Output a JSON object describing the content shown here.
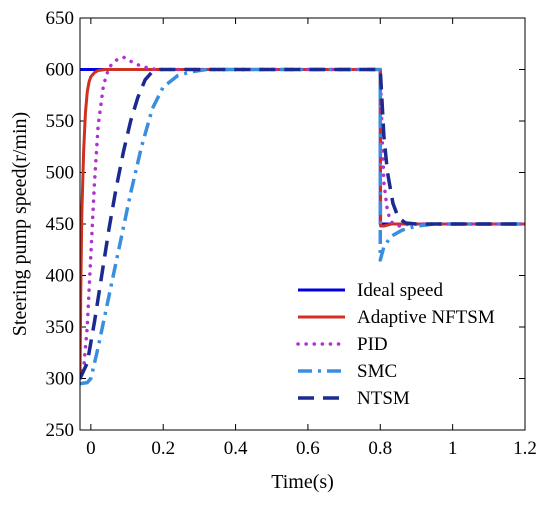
{
  "chart_data": {
    "type": "line",
    "title": "",
    "xlabel": "Time(s)",
    "ylabel": "Steering pump speed(r/min)",
    "xlim": [
      -0.03,
      1.2
    ],
    "ylim": [
      250,
      650
    ],
    "xticks": [
      0,
      0.2,
      0.4,
      0.6,
      0.8,
      1,
      1.2
    ],
    "xtick_labels": [
      "0",
      "0.2",
      "0.4",
      "0.6",
      "0.8",
      "1",
      "1.2"
    ],
    "yticks": [
      250,
      300,
      350,
      400,
      450,
      500,
      550,
      600,
      650
    ],
    "ytick_labels": [
      "250",
      "300",
      "350",
      "400",
      "450",
      "500",
      "550",
      "600",
      "650"
    ],
    "grid": false,
    "legend_position": "bottom-right",
    "series": [
      {
        "name": "Ideal speed",
        "color": "#0000e0",
        "style": "solid",
        "points": [
          [
            -0.03,
            600
          ],
          [
            0.8,
            600
          ],
          [
            0.8,
            450
          ],
          [
            1.2,
            450
          ]
        ]
      },
      {
        "name": "Adaptive NFTSM",
        "color": "#d03020",
        "style": "solid",
        "points": [
          [
            -0.03,
            300
          ],
          [
            -0.028,
            380
          ],
          [
            -0.025,
            460
          ],
          [
            -0.02,
            520
          ],
          [
            -0.015,
            558
          ],
          [
            -0.01,
            578
          ],
          [
            -0.005,
            588
          ],
          [
            0.0,
            593
          ],
          [
            0.01,
            597
          ],
          [
            0.02,
            599
          ],
          [
            0.04,
            600
          ],
          [
            0.8,
            600
          ],
          [
            0.801,
            448
          ],
          [
            0.81,
            448
          ],
          [
            0.83,
            450
          ],
          [
            0.85,
            450
          ],
          [
            1.2,
            450
          ]
        ]
      },
      {
        "name": "PID",
        "color": "#b030d0",
        "style": "dotted",
        "points": [
          [
            -0.03,
            300
          ],
          [
            -0.02,
            310
          ],
          [
            -0.01,
            350
          ],
          [
            0.0,
            420
          ],
          [
            0.01,
            490
          ],
          [
            0.02,
            545
          ],
          [
            0.035,
            585
          ],
          [
            0.05,
            602
          ],
          [
            0.07,
            609
          ],
          [
            0.09,
            612
          ],
          [
            0.11,
            608
          ],
          [
            0.14,
            603
          ],
          [
            0.18,
            600
          ],
          [
            0.8,
            600
          ],
          [
            0.805,
            535
          ],
          [
            0.81,
            490
          ],
          [
            0.82,
            462
          ],
          [
            0.83,
            452
          ],
          [
            0.85,
            448
          ],
          [
            0.88,
            450
          ],
          [
            1.2,
            450
          ]
        ]
      },
      {
        "name": "SMC",
        "color": "#3a8ee0",
        "style": "dashdot",
        "points": [
          [
            -0.03,
            295
          ],
          [
            -0.01,
            296
          ],
          [
            0.0,
            300
          ],
          [
            0.02,
            330
          ],
          [
            0.05,
            380
          ],
          [
            0.08,
            430
          ],
          [
            0.11,
            480
          ],
          [
            0.14,
            525
          ],
          [
            0.17,
            562
          ],
          [
            0.2,
            583
          ],
          [
            0.24,
            594
          ],
          [
            0.28,
            598
          ],
          [
            0.32,
            600
          ],
          [
            0.8,
            600
          ],
          [
            0.8,
            415
          ],
          [
            0.81,
            428
          ],
          [
            0.83,
            438
          ],
          [
            0.86,
            444
          ],
          [
            0.9,
            448
          ],
          [
            0.95,
            450
          ],
          [
            1.2,
            450
          ]
        ]
      },
      {
        "name": "NTSM",
        "color": "#1a2a8e",
        "style": "dashed",
        "points": [
          [
            -0.03,
            300
          ],
          [
            -0.01,
            315
          ],
          [
            0.01,
            355
          ],
          [
            0.03,
            400
          ],
          [
            0.05,
            445
          ],
          [
            0.07,
            485
          ],
          [
            0.09,
            520
          ],
          [
            0.11,
            550
          ],
          [
            0.13,
            573
          ],
          [
            0.15,
            590
          ],
          [
            0.17,
            598
          ],
          [
            0.19,
            600
          ],
          [
            0.8,
            600
          ],
          [
            0.805,
            568
          ],
          [
            0.81,
            535
          ],
          [
            0.82,
            500
          ],
          [
            0.835,
            470
          ],
          [
            0.85,
            456
          ],
          [
            0.87,
            451
          ],
          [
            0.9,
            450
          ],
          [
            1.2,
            450
          ]
        ]
      }
    ]
  }
}
